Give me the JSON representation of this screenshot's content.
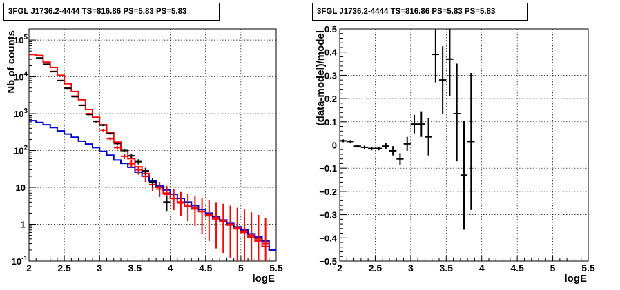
{
  "chart_data": [
    {
      "type": "line",
      "title": "3FGL J1736.2-4444 TS=816.86 PS=5.83 PS=5.83",
      "xlabel": "logE",
      "ylabel": "Nb of counts",
      "xlim": [
        2,
        5.5
      ],
      "ylim": [
        0.1,
        200000
      ],
      "y_scale": "log",
      "grid": true,
      "x_ticks": [
        "2",
        "2.5",
        "3",
        "3.5",
        "4",
        "4.5",
        "5",
        "5.5"
      ],
      "y_ticks": [
        {
          "value": 0.1,
          "base": "10",
          "exp": "-1"
        },
        {
          "value": 1,
          "base": "1",
          "exp": ""
        },
        {
          "value": 10,
          "base": "10",
          "exp": ""
        },
        {
          "value": 100,
          "base": "10",
          "exp": "2"
        },
        {
          "value": 1000,
          "base": "10",
          "exp": "3"
        },
        {
          "value": 10000,
          "base": "10",
          "exp": "4"
        },
        {
          "value": 100000,
          "base": "10",
          "exp": "5"
        }
      ],
      "series": [
        {
          "kind": "step",
          "color": "#ff0000",
          "x": [
            2.0,
            2.1,
            2.2,
            2.3,
            2.4,
            2.5,
            2.6,
            2.7,
            2.8,
            2.9,
            3.0,
            3.1,
            3.2,
            3.3,
            3.4,
            3.5,
            3.6,
            3.7,
            3.8,
            3.9,
            4.0,
            4.1,
            4.2,
            4.3,
            4.4,
            4.5,
            4.6,
            4.7,
            4.8,
            4.9,
            5.0,
            5.1,
            5.2,
            5.3,
            5.4
          ],
          "y": [
            40000,
            38000,
            25000,
            18000,
            11000,
            6500,
            4000,
            2400,
            1300,
            800,
            500,
            300,
            170,
            100,
            60,
            36,
            24,
            15,
            10,
            7,
            5,
            3.8,
            3,
            2.6,
            2.2,
            1.7,
            1.4,
            1.2,
            0.95,
            0.75,
            0.6,
            0.45,
            0.35,
            0.25,
            0.2
          ]
        },
        {
          "kind": "step",
          "color": "#0000cc",
          "x": [
            2.0,
            2.1,
            2.2,
            2.3,
            2.4,
            2.5,
            2.6,
            2.7,
            2.8,
            2.9,
            3.0,
            3.1,
            3.2,
            3.3,
            3.4,
            3.5,
            3.6,
            3.7,
            3.8,
            3.9,
            4.0,
            4.1,
            4.2,
            4.3,
            4.4,
            4.5,
            4.6,
            4.7,
            4.8,
            4.9,
            5.0,
            5.1,
            5.2,
            5.3,
            5.4
          ],
          "y": [
            650,
            580,
            500,
            420,
            340,
            280,
            230,
            180,
            150,
            120,
            95,
            75,
            55,
            45,
            35,
            26,
            20,
            15,
            11,
            8.5,
            6.5,
            5,
            4,
            3.2,
            2.5,
            2,
            1.6,
            1.3,
            1.05,
            0.85,
            0.7,
            0.55,
            0.45,
            0.35,
            0.2
          ]
        },
        {
          "kind": "errorbar",
          "color": "#ff0000",
          "x": [
            2.15,
            2.25,
            2.35,
            2.45,
            2.55,
            2.65,
            2.75,
            2.85,
            2.95,
            3.05,
            3.15,
            3.25,
            3.35,
            3.45,
            3.55,
            3.65,
            3.75,
            3.85,
            3.95,
            4.05,
            4.15,
            4.25,
            4.35,
            4.45,
            4.55,
            4.65,
            4.75,
            4.85,
            4.95,
            5.05,
            5.15,
            5.25,
            5.35
          ],
          "y": [
            32000,
            22000,
            14000,
            8000,
            5000,
            3000,
            1700,
            1000,
            620,
            360,
            210,
            120,
            70,
            44,
            30,
            20,
            12,
            9,
            6.5,
            5,
            4,
            3.3,
            2.8,
            2.2,
            1.8,
            1.5,
            1.25,
            1,
            0.8,
            0.65,
            0.5,
            0.4,
            0.3
          ],
          "ylow": [
            31500,
            21500,
            13700,
            7800,
            4850,
            2900,
            1640,
            950,
            580,
            330,
            190,
            105,
            58,
            35,
            22,
            14,
            8,
            5.5,
            3.5,
            2.4,
            1.7,
            1.2,
            0.9,
            0.55,
            0.35,
            0.22,
            0.16,
            0.12,
            0.1,
            0.1,
            0.1,
            0.1,
            0.1
          ],
          "yhigh": [
            32500,
            22500,
            14300,
            8200,
            5150,
            3100,
            1760,
            1050,
            660,
            390,
            230,
            135,
            82,
            54,
            38,
            28,
            18,
            14,
            11,
            9,
            7.5,
            6.5,
            6,
            5,
            4.5,
            4,
            3.6,
            3.2,
            2.8,
            2.5,
            2.1,
            1.8,
            1.5
          ]
        },
        {
          "kind": "errorbar",
          "color": "#000000",
          "x": [
            2.15,
            2.25,
            2.35,
            2.45,
            2.55,
            2.65,
            2.75,
            2.85,
            2.95,
            3.05,
            3.15,
            3.25,
            3.35,
            3.45,
            3.55,
            3.65,
            3.75,
            3.95
          ],
          "y": [
            32500,
            21800,
            13800,
            7900,
            4900,
            2900,
            1680,
            950,
            620,
            490,
            290,
            155,
            100,
            72,
            50,
            28,
            14,
            4
          ],
          "ylow": [
            32000,
            21300,
            13500,
            7700,
            4750,
            2800,
            1620,
            910,
            590,
            460,
            270,
            143,
            90,
            63,
            42,
            22,
            10,
            2.2
          ],
          "yhigh": [
            33000,
            22300,
            14100,
            8100,
            5050,
            3000,
            1740,
            990,
            650,
            520,
            310,
            167,
            110,
            81,
            58,
            34,
            18,
            6
          ]
        }
      ]
    },
    {
      "type": "scatter",
      "title": "3FGL J1736.2-4444 TS=816.86 PS=5.83 PS=5.83",
      "xlabel": "logE",
      "ylabel": "(data-model)/model",
      "xlim": [
        2,
        5.5
      ],
      "ylim": [
        -0.5,
        0.5
      ],
      "grid": true,
      "x_ticks": [
        "2",
        "2.5",
        "3",
        "3.5",
        "4",
        "4.5",
        "5",
        "5.5"
      ],
      "y_ticks": [
        "−0.5",
        "−0.4",
        "−0.3",
        "−0.2",
        "−0.1",
        "0",
        "0.1",
        "0.2",
        "0.3",
        "0.4",
        "0.5"
      ],
      "series": [
        {
          "kind": "errorbar",
          "color": "#000000",
          "x": [
            2.05,
            2.15,
            2.25,
            2.35,
            2.45,
            2.55,
            2.65,
            2.75,
            2.85,
            2.95,
            3.05,
            3.15,
            3.25,
            3.35,
            3.45,
            3.55,
            3.65,
            3.75,
            3.85
          ],
          "y": [
            0.018,
            0.015,
            -0.005,
            -0.01,
            -0.015,
            -0.015,
            -0.005,
            -0.025,
            -0.06,
            0.005,
            0.09,
            0.09,
            0.035,
            0.39,
            0.28,
            0.37,
            0.135,
            -0.13,
            0.015
          ],
          "ylow": [
            0.012,
            0.009,
            -0.011,
            -0.017,
            -0.023,
            -0.023,
            -0.018,
            -0.045,
            -0.085,
            -0.025,
            0.05,
            0.035,
            -0.045,
            0.27,
            0.135,
            0.21,
            -0.07,
            -0.365,
            -0.28
          ],
          "yhigh": [
            0.024,
            0.021,
            0.001,
            -0.003,
            -0.007,
            -0.007,
            0.008,
            -0.005,
            -0.035,
            0.035,
            0.13,
            0.145,
            0.115,
            0.5,
            0.425,
            0.5,
            0.35,
            0.105,
            0.31
          ]
        }
      ]
    }
  ]
}
